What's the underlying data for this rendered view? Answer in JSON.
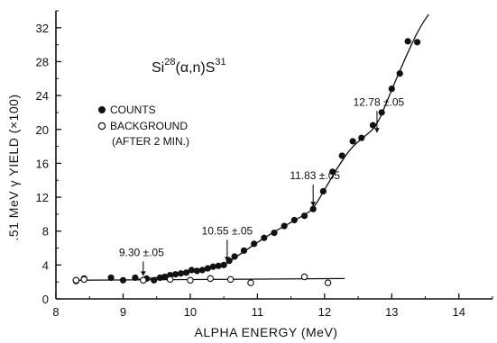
{
  "chart_data": {
    "type": "scatter",
    "title": "Si²⁸(α,n)S³¹",
    "title_parts": {
      "element1": "Si",
      "mass1": "28",
      "reaction": "(α,n)",
      "element2": "S",
      "mass2": "31"
    },
    "xlabel": "ALPHA ENERGY (MeV)",
    "ylabel": ".51 MeV γ YIELD  (×100)",
    "xlim": [
      8,
      14.5
    ],
    "ylim": [
      0,
      34
    ],
    "x_ticks": [
      8,
      9,
      10,
      11,
      12,
      13,
      14
    ],
    "x_tick_labels": [
      "8",
      "9",
      "10",
      "11",
      "12",
      "13",
      "14"
    ],
    "y_ticks": [
      0,
      4,
      8,
      12,
      16,
      20,
      24,
      28,
      32
    ],
    "y_tick_labels": [
      "0",
      "4",
      "8",
      "12",
      "16",
      "20",
      "24",
      "28",
      "32"
    ],
    "grid": false,
    "legend": {
      "placement": "upper-left",
      "entries": [
        {
          "label": "COUNTS",
          "marker": "filled-circle"
        },
        {
          "label": "BACKGROUND",
          "marker": "open-circle",
          "note": "(AFTER 2 MIN.)"
        }
      ]
    },
    "series": [
      {
        "name": "COUNTS",
        "marker": "filled",
        "x": [
          8.3,
          8.42,
          8.82,
          9.0,
          9.18,
          9.35,
          9.46,
          9.55,
          9.62,
          9.7,
          9.78,
          9.86,
          9.94,
          10.02,
          10.1,
          10.18,
          10.26,
          10.34,
          10.42,
          10.5,
          10.58,
          10.66,
          10.8,
          10.95,
          11.1,
          11.25,
          11.4,
          11.55,
          11.7,
          11.83,
          11.98,
          12.12,
          12.26,
          12.42,
          12.55,
          12.72,
          12.85,
          13.0,
          13.12,
          13.24,
          13.38
        ],
        "y": [
          2.1,
          2.4,
          2.5,
          2.2,
          2.5,
          2.4,
          2.2,
          2.5,
          2.6,
          2.8,
          2.9,
          3.0,
          3.1,
          3.4,
          3.3,
          3.4,
          3.6,
          3.8,
          3.9,
          4.0,
          4.5,
          5.0,
          5.7,
          6.5,
          7.2,
          7.8,
          8.6,
          9.3,
          9.8,
          10.6,
          12.7,
          15.0,
          16.9,
          18.6,
          19.0,
          20.5,
          22.0,
          24.8,
          26.6,
          30.4,
          30.3
        ]
      },
      {
        "name": "BACKGROUND",
        "marker": "open",
        "x": [
          8.3,
          8.42,
          9.3,
          9.7,
          10.0,
          10.3,
          10.6,
          10.9,
          11.7,
          12.05
        ],
        "y": [
          2.2,
          2.3,
          2.2,
          2.3,
          2.2,
          2.4,
          2.3,
          1.9,
          2.6,
          1.9
        ]
      }
    ],
    "fit_curves": [
      {
        "name": "counts-curve",
        "x": [
          9.2,
          9.5,
          9.8,
          10.1,
          10.4,
          10.55,
          10.8,
          11.1,
          11.4,
          11.7,
          11.83,
          12.0,
          12.2,
          12.4,
          12.6,
          12.78,
          13.0,
          13.2,
          13.4,
          13.55
        ],
        "y": [
          2.3,
          2.5,
          2.9,
          3.3,
          3.8,
          4.2,
          5.6,
          7.2,
          8.6,
          9.9,
          10.6,
          12.9,
          15.6,
          17.9,
          19.2,
          20.4,
          24.7,
          28.4,
          31.8,
          33.6
        ]
      },
      {
        "name": "background-line",
        "x": [
          8.25,
          12.3
        ],
        "y": [
          2.2,
          2.4
        ]
      }
    ],
    "annotations": [
      {
        "text": "9.30 ±.05",
        "x": 9.3,
        "y": 2.3
      },
      {
        "text": "10.55 ±.05",
        "x": 10.55,
        "y": 4.0
      },
      {
        "text": "11.83 ±.05",
        "x": 11.83,
        "y": 10.5
      },
      {
        "text": "12.78 ±.05",
        "x": 12.78,
        "y": 19.2
      }
    ]
  }
}
